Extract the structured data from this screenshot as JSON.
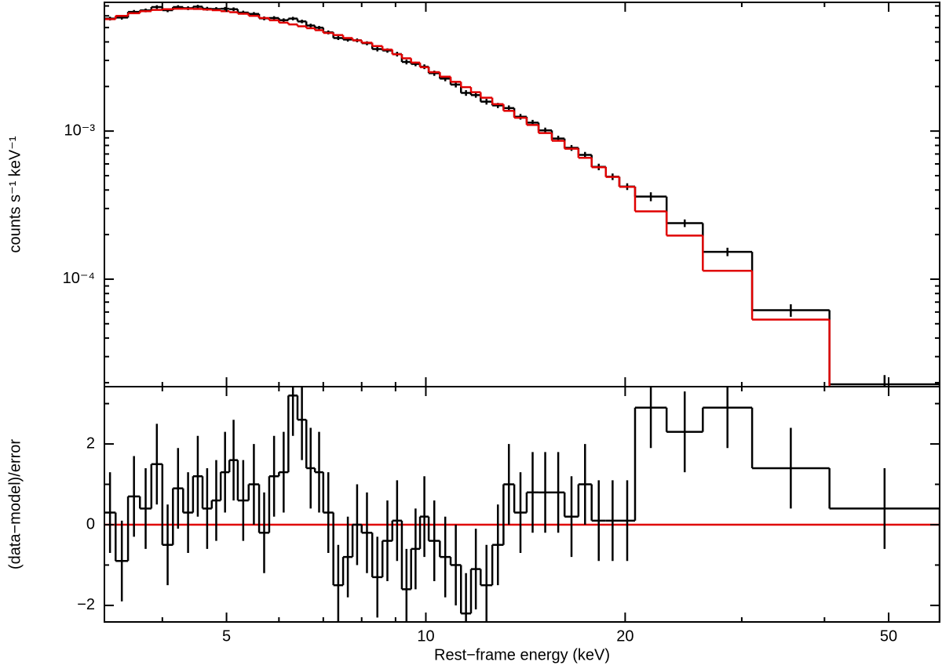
{
  "chart_data": [
    {
      "type": "step",
      "ylabel": "counts s⁻¹ keV⁻¹",
      "log_x": true,
      "log_y": true,
      "xlim": [
        3.27,
        59.7
      ],
      "ylim": [
        1.88e-05,
        0.0074
      ],
      "xticks": [
        5,
        10,
        20,
        50
      ],
      "xminor_ticks": [
        4,
        6,
        7,
        8,
        9,
        30,
        40
      ],
      "yticks": [
        {
          "value": 0.001,
          "label": "10⁻³"
        },
        {
          "value": 0.0001,
          "label": "10⁻⁴"
        }
      ],
      "yminor_ticks": [
        2e-05,
        3e-05,
        4e-05,
        5e-05,
        6e-05,
        7e-05,
        8e-05,
        9e-05,
        0.0002,
        0.0003,
        0.0004,
        0.0005,
        0.0006,
        0.0007,
        0.0008,
        0.0009,
        0.002,
        0.003,
        0.004,
        0.005,
        0.006,
        0.007
      ],
      "bins": [
        3.27,
        3.4,
        3.55,
        3.7,
        3.85,
        4.0,
        4.15,
        4.3,
        4.45,
        4.6,
        4.75,
        4.9,
        5.05,
        5.2,
        5.4,
        5.6,
        5.8,
        6.0,
        6.2,
        6.4,
        6.6,
        6.8,
        7.0,
        7.25,
        7.5,
        7.75,
        8.0,
        8.3,
        8.6,
        8.9,
        9.2,
        9.5,
        9.8,
        10.1,
        10.5,
        10.9,
        11.3,
        11.7,
        12.1,
        12.6,
        13.1,
        13.6,
        14.2,
        14.8,
        15.5,
        16.2,
        17.0,
        17.8,
        18.7,
        19.6,
        20.7,
        23.1,
        26.2,
        31.1,
        40.7,
        59.7
      ],
      "data": {
        "color": "#000000",
        "values": [
          0.00575,
          0.00584,
          0.00638,
          0.00653,
          0.00688,
          0.00655,
          0.00688,
          0.00676,
          0.00692,
          0.0067,
          0.00667,
          0.0067,
          0.00665,
          0.00631,
          0.00618,
          0.00577,
          0.0058,
          0.00561,
          0.00575,
          0.0055,
          0.00516,
          0.00499,
          0.00464,
          0.00425,
          0.00415,
          0.0041,
          0.00392,
          0.00358,
          0.0035,
          0.00331,
          0.00293,
          0.00284,
          0.00272,
          0.00246,
          0.00226,
          0.00206,
          0.00181,
          0.00175,
          0.00158,
          0.00149,
          0.00143,
          0.00125,
          0.00114,
          0.00101,
          0.00089,
          0.00077,
          0.00069,
          0.000573,
          0.000492,
          0.000422,
          0.000361,
          0.000239,
          0.000153,
          6.17e-05,
          1.95e-05
        ],
        "errors": [
          0.00017,
          0.00018,
          0.00019,
          0.00019,
          0.0002,
          0.0002,
          0.0002,
          0.0002,
          0.0002,
          0.0002,
          0.0002,
          0.00019,
          0.00019,
          0.00019,
          0.00018,
          0.00017,
          0.00017,
          0.00016,
          0.00016,
          0.00015,
          0.00015,
          0.00014,
          0.00014,
          0.00013,
          0.00013,
          0.00012,
          0.00012,
          0.00013,
          0.00012,
          0.00012,
          0.00011,
          0.0001,
          0.0001,
          0.0001,
          9e-05,
          9e-05,
          8e-05,
          7e-05,
          7e-05,
          6e-05,
          6e-05,
          5.5e-05,
          5e-05,
          4.5e-05,
          4e-05,
          3.5e-05,
          3.3e-05,
          2.9e-05,
          2.5e-05,
          2.2e-05,
          2.5e-05,
          1.4e-05,
          1e-05,
          6e-06,
          3e-06
        ]
      },
      "model": {
        "color": "#e00000",
        "values": [
          0.0057,
          0.006,
          0.00625,
          0.00645,
          0.00658,
          0.00665,
          0.0067,
          0.0067,
          0.00668,
          0.00662,
          0.00655,
          0.00645,
          0.00635,
          0.0062,
          0.006,
          0.0058,
          0.0056,
          0.0054,
          0.00525,
          0.0051,
          0.00495,
          0.0048,
          0.0046,
          0.00445,
          0.00425,
          0.0041,
          0.00395,
          0.00375,
          0.00355,
          0.0033,
          0.0031,
          0.0029,
          0.0027,
          0.0025,
          0.00233,
          0.00215,
          0.00198,
          0.00183,
          0.00168,
          0.00152,
          0.00137,
          0.00123,
          0.0011,
          0.00097,
          0.00086,
          0.00076,
          0.00066,
          0.00057,
          0.00049,
          0.00042,
          0.000287,
          0.000197,
          0.000114,
          5.33e-05,
          1.5e-05
        ]
      }
    },
    {
      "type": "step",
      "ylabel": "(data−model)/error",
      "xlabel": "Rest−frame energy (keV)",
      "log_x": true,
      "xlim": [
        3.27,
        59.7
      ],
      "ylim": [
        -2.41,
        3.42
      ],
      "xticks": [
        5,
        10,
        20,
        50
      ],
      "xminor_ticks": [
        4,
        6,
        7,
        8,
        9,
        30,
        40
      ],
      "yticks": [
        {
          "value": -2,
          "label": "−2"
        },
        0,
        2
      ],
      "yminor_ticks": [
        -1,
        1,
        3
      ],
      "bins": [
        3.27,
        3.4,
        3.55,
        3.7,
        3.85,
        4.0,
        4.15,
        4.3,
        4.45,
        4.6,
        4.75,
        4.9,
        5.05,
        5.2,
        5.4,
        5.6,
        5.8,
        6.0,
        6.2,
        6.4,
        6.6,
        6.8,
        7.0,
        7.25,
        7.5,
        7.75,
        8.0,
        8.3,
        8.6,
        8.9,
        9.2,
        9.5,
        9.8,
        10.1,
        10.5,
        10.9,
        11.3,
        11.7,
        12.1,
        12.6,
        13.1,
        13.6,
        14.2,
        14.8,
        15.5,
        16.2,
        17.0,
        17.8,
        18.7,
        19.6,
        20.7,
        23.1,
        26.2,
        31.1,
        40.7,
        59.7
      ],
      "data": {
        "color": "#000000",
        "values": [
          0.3,
          -0.9,
          0.7,
          0.4,
          1.5,
          -0.5,
          0.9,
          0.3,
          1.2,
          0.4,
          0.6,
          1.3,
          1.6,
          0.6,
          1.0,
          -0.2,
          1.2,
          1.3,
          3.2,
          2.6,
          1.4,
          1.3,
          0.3,
          -1.5,
          -0.8,
          0,
          -0.2,
          -1.3,
          -0.4,
          0.1,
          -1.6,
          -0.6,
          0.2,
          -0.4,
          -0.8,
          -1.0,
          -2.2,
          -1.1,
          -1.5,
          -0.5,
          1.0,
          0.3,
          0.8,
          0.8,
          0.8,
          0.2,
          1.0,
          0.1,
          0.1,
          0.1,
          2.9,
          2.3,
          2.9,
          1.4,
          0.4
        ],
        "errors": [
          1,
          1,
          1,
          1,
          1,
          1,
          1,
          1,
          1,
          1,
          1,
          1,
          1,
          1,
          1,
          1,
          1,
          1,
          1,
          1,
          1,
          1,
          1,
          1,
          1,
          1,
          1,
          1,
          1,
          1,
          1,
          1,
          1,
          1,
          1,
          1,
          1,
          1,
          1,
          1,
          1,
          1,
          1,
          1,
          1,
          1,
          1,
          1,
          1,
          1,
          1,
          1,
          1,
          1,
          1
        ]
      },
      "reference": {
        "value": 0,
        "color": "#e00000"
      }
    }
  ]
}
